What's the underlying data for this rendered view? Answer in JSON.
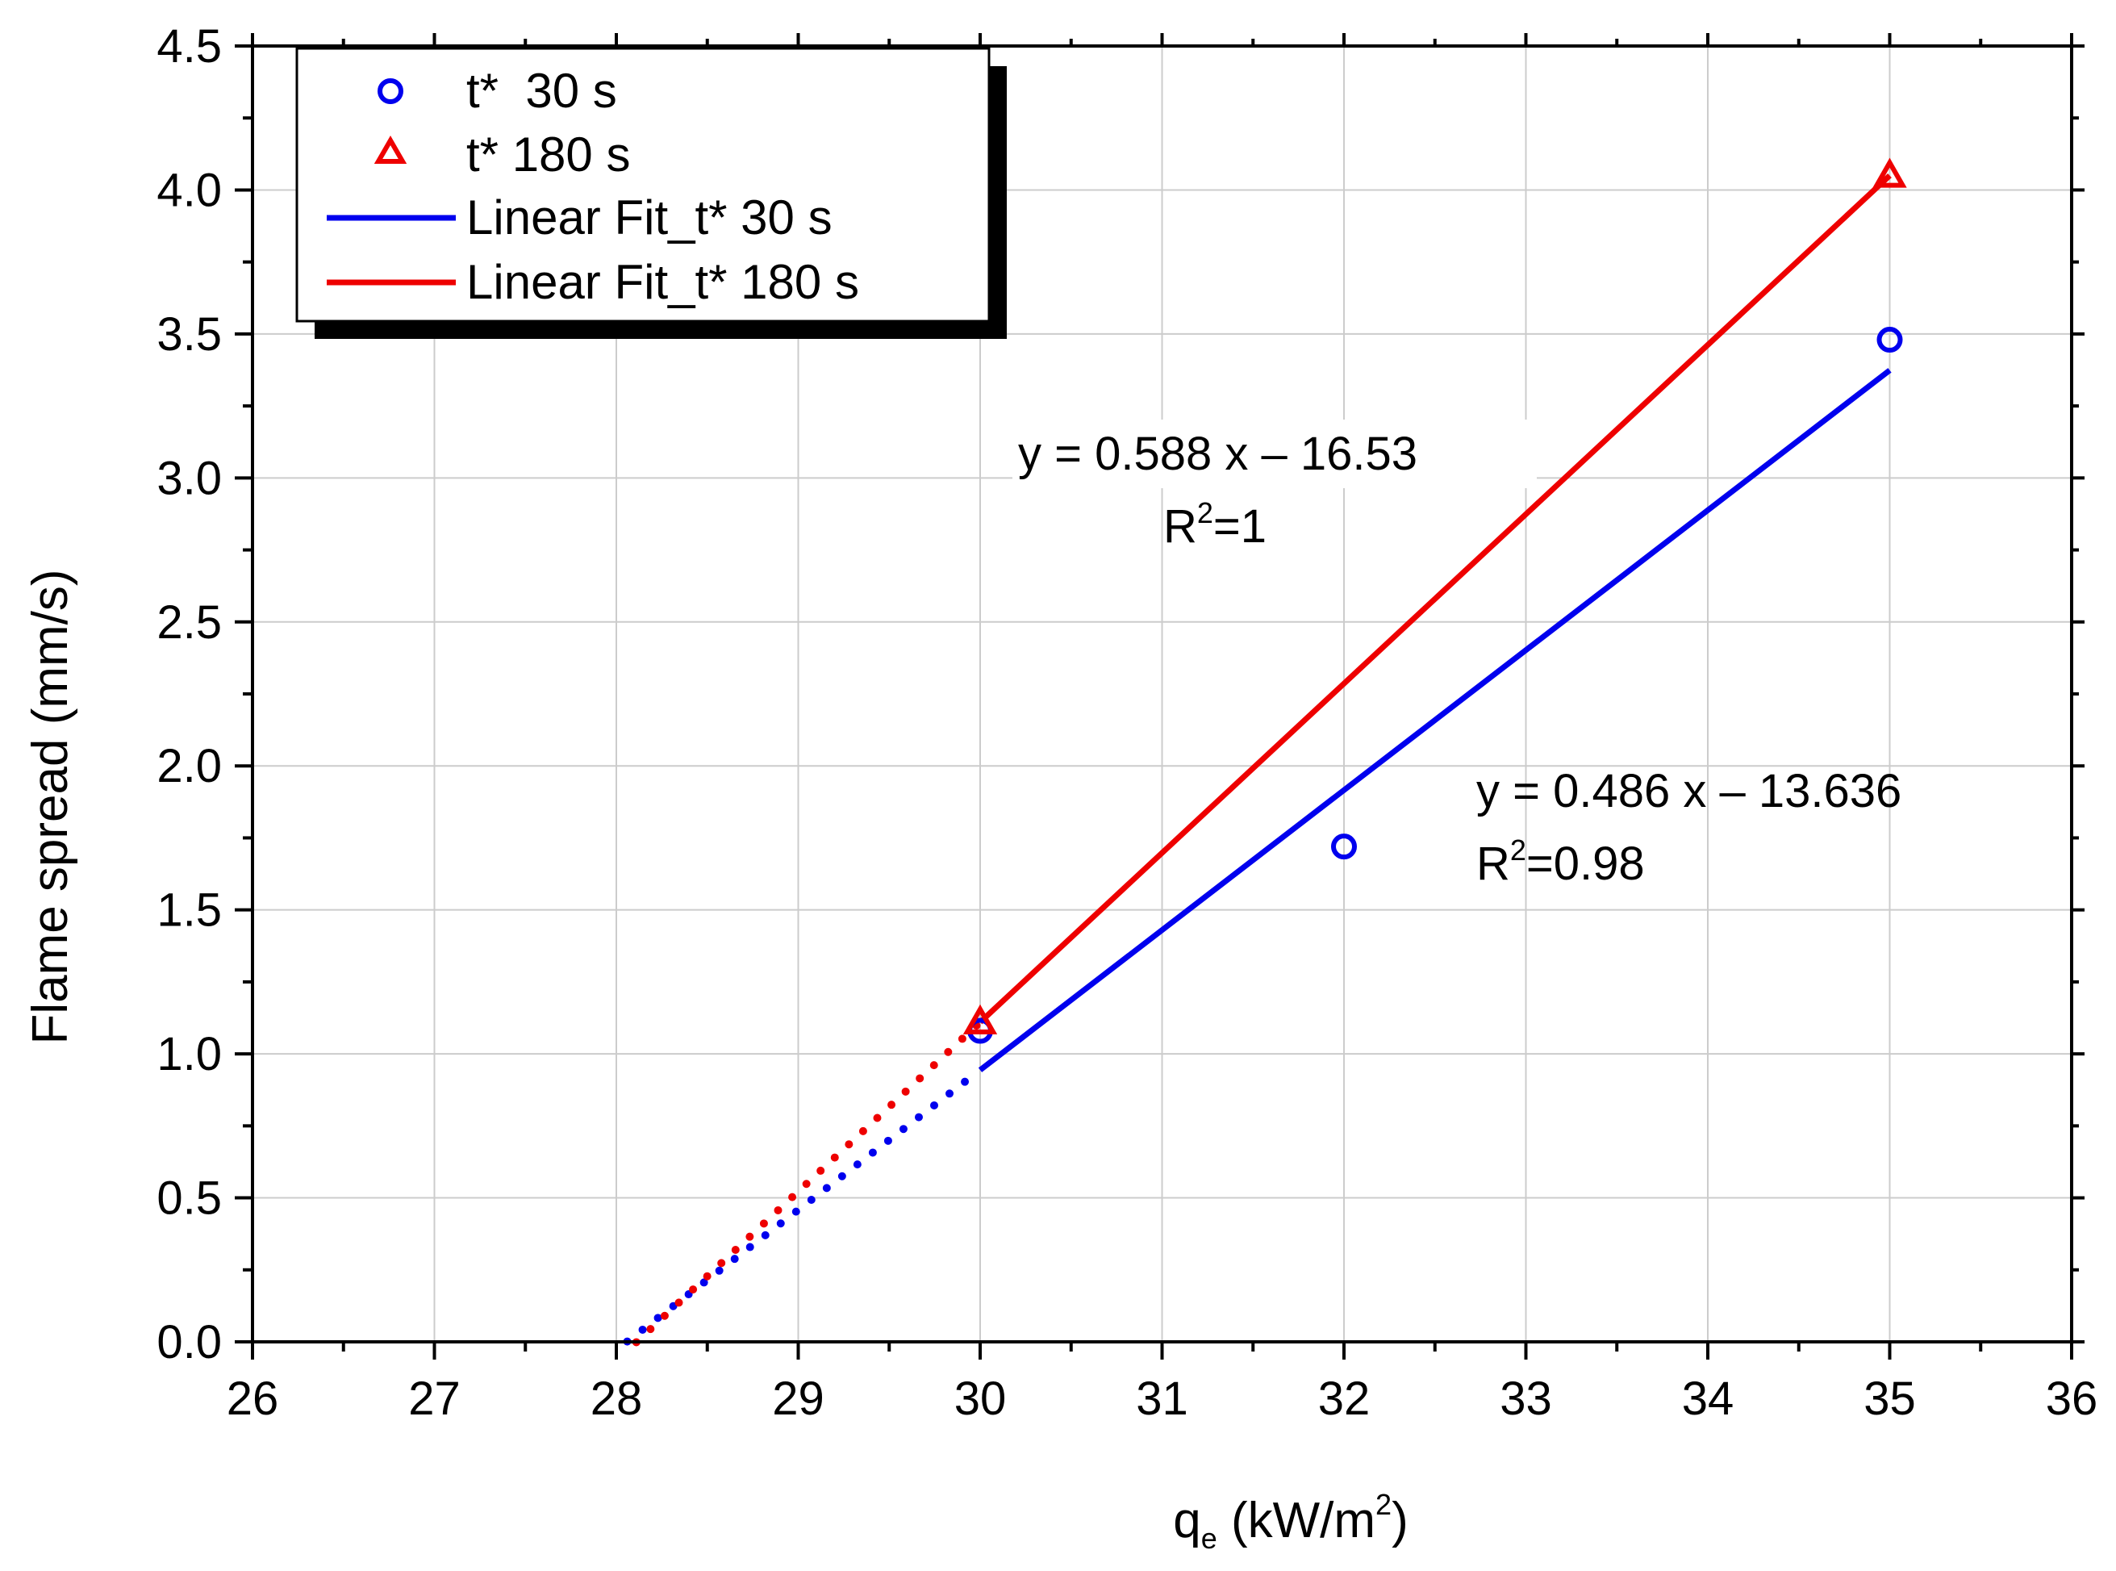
{
  "chart_data": {
    "type": "scatter",
    "title": "",
    "xlabel": "q",
    "xlabel_sub": "e",
    "xlabel_unit": " (kW/m",
    "xlabel_sup": "2",
    "xlabel_close": ")",
    "ylabel": "Flame spread (mm/s)",
    "xlim": [
      26,
      36
    ],
    "ylim": [
      0,
      4.5
    ],
    "x_ticks": [
      "26",
      "27",
      "28",
      "29",
      "30",
      "31",
      "32",
      "33",
      "34",
      "35",
      "36"
    ],
    "y_ticks": [
      "0.0",
      "0.5",
      "1.0",
      "1.5",
      "2.0",
      "2.5",
      "3.0",
      "3.5",
      "4.0",
      "4.5"
    ],
    "grid": true,
    "legend_position": "top-left",
    "series": [
      {
        "name": "t*  30 s",
        "marker": "circle",
        "color": "#0000ee",
        "points": [
          [
            30,
            1.08
          ],
          [
            32,
            1.72
          ],
          [
            35,
            3.48
          ]
        ]
      },
      {
        "name": "t* 180 s",
        "marker": "triangle",
        "color": "#ee0000",
        "points": [
          [
            30,
            1.11
          ],
          [
            35,
            4.05
          ]
        ]
      }
    ],
    "fits": [
      {
        "name": "Linear Fit_t* 30 s",
        "color": "#0000ee",
        "slope": 0.486,
        "intercept": -13.636,
        "solid_range": [
          30,
          35
        ],
        "dotted_range": [
          28.06,
          30
        ],
        "equation": "y = 0.486 x – 13.636",
        "r2_prefix": "R",
        "r2_sup": "2",
        "r2_value": "=0.98"
      },
      {
        "name": "Linear Fit_t* 180 s",
        "color": "#ee0000",
        "slope": 0.588,
        "intercept": -16.53,
        "solid_range": [
          30,
          35
        ],
        "dotted_range": [
          28.11,
          30
        ],
        "equation": "y = 0.588 x – 16.53",
        "r2_prefix": "R",
        "r2_sup": "2",
        "r2_value": "=1"
      }
    ]
  }
}
